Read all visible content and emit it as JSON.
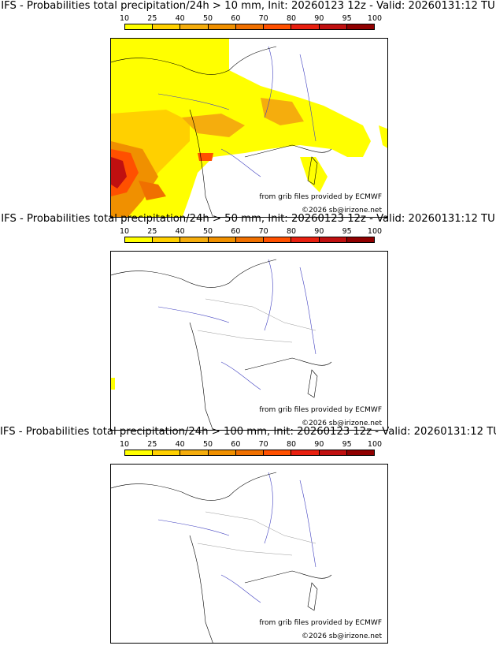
{
  "colorbar": {
    "labels": [
      "10",
      "25",
      "40",
      "50",
      "60",
      "70",
      "80",
      "90",
      "95",
      "100"
    ],
    "colors": [
      "#ffff00",
      "#ffd000",
      "#f5ad0d",
      "#f09000",
      "#f07000",
      "#ff5000",
      "#e82010",
      "#c01010",
      "#900000",
      "#600000"
    ]
  },
  "panels": [
    {
      "title": "IFS - Probabilities total precipitation/24h > 10 mm, Init: 20260123 12z - Valid: 20260131:12 TU",
      "credit1": "from grib files provided by ECMWF",
      "credit2": "©2026 sb@irizone.net"
    },
    {
      "title": "IFS - Probabilities total precipitation/24h > 50 mm, Init: 20260123 12z - Valid: 20260131:12 TU",
      "credit1": "from grib files provided by ECMWF",
      "credit2": "©2026 sb@irizone.net"
    },
    {
      "title": "IFS - Probabilities total precipitation/24h > 100 mm, Init: 20260123 12z - Valid: 20260131:12 TU",
      "credit1": "from grib files provided by ECMWF",
      "credit2": "©2026 sb@irizone.net"
    }
  ]
}
